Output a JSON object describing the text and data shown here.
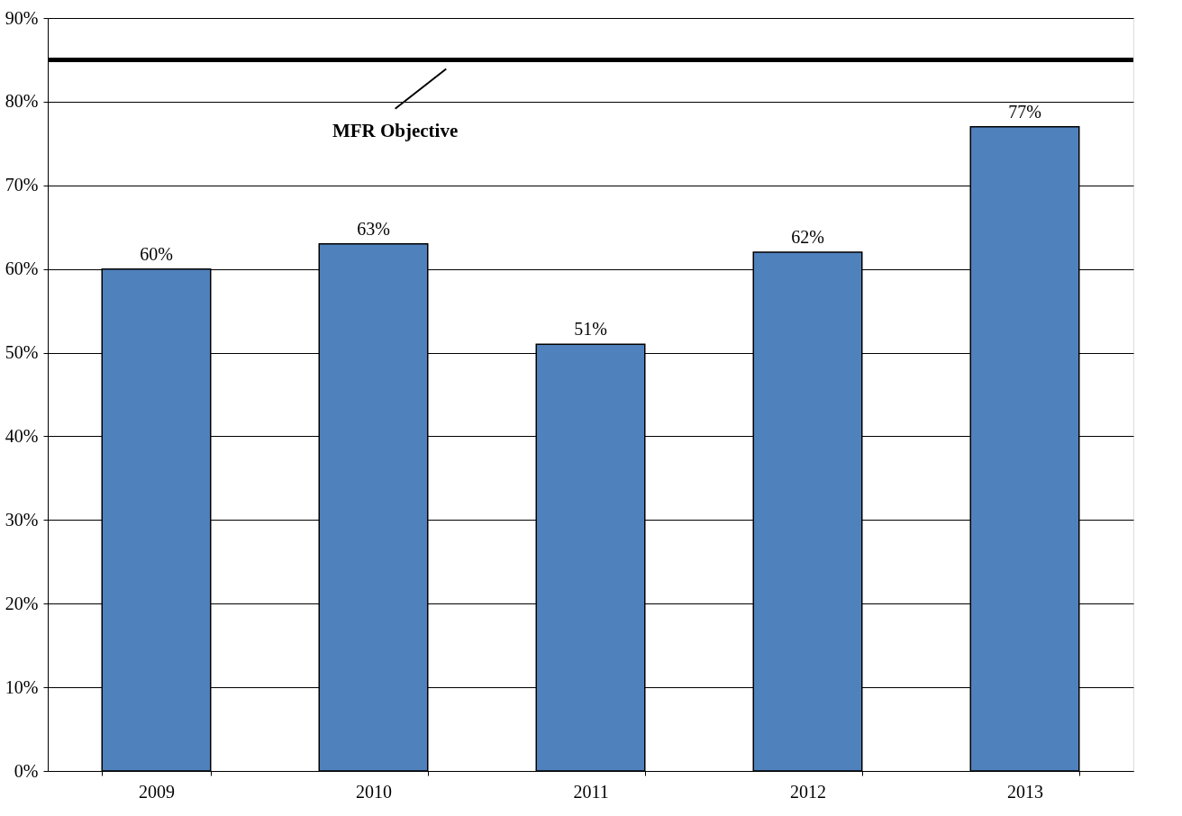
{
  "chart_data": {
    "type": "bar",
    "categories": [
      "2009",
      "2010",
      "2011",
      "2012",
      "2013"
    ],
    "values": [
      60,
      63,
      51,
      62,
      77
    ],
    "color": "#4f81bd",
    "value_labels": [
      "60%",
      "63%",
      "51%",
      "62%",
      "77%"
    ],
    "ylim": [
      0,
      90
    ],
    "yticks": [
      {
        "value": 0,
        "label": "0%"
      },
      {
        "value": 10,
        "label": "10%"
      },
      {
        "value": 20,
        "label": "20%"
      },
      {
        "value": 30,
        "label": "30%"
      },
      {
        "value": 40,
        "label": "40%"
      },
      {
        "value": 50,
        "label": "50%"
      },
      {
        "value": 60,
        "label": "60%"
      },
      {
        "value": 70,
        "label": "70%"
      },
      {
        "value": 80,
        "label": "80%"
      },
      {
        "value": 90,
        "label": "90%"
      }
    ],
    "grid": "y",
    "ref_lines": [
      {
        "axis": "y",
        "value": 85,
        "label": "MFR Objective",
        "color": "#000000",
        "line_style": "solid"
      }
    ]
  }
}
